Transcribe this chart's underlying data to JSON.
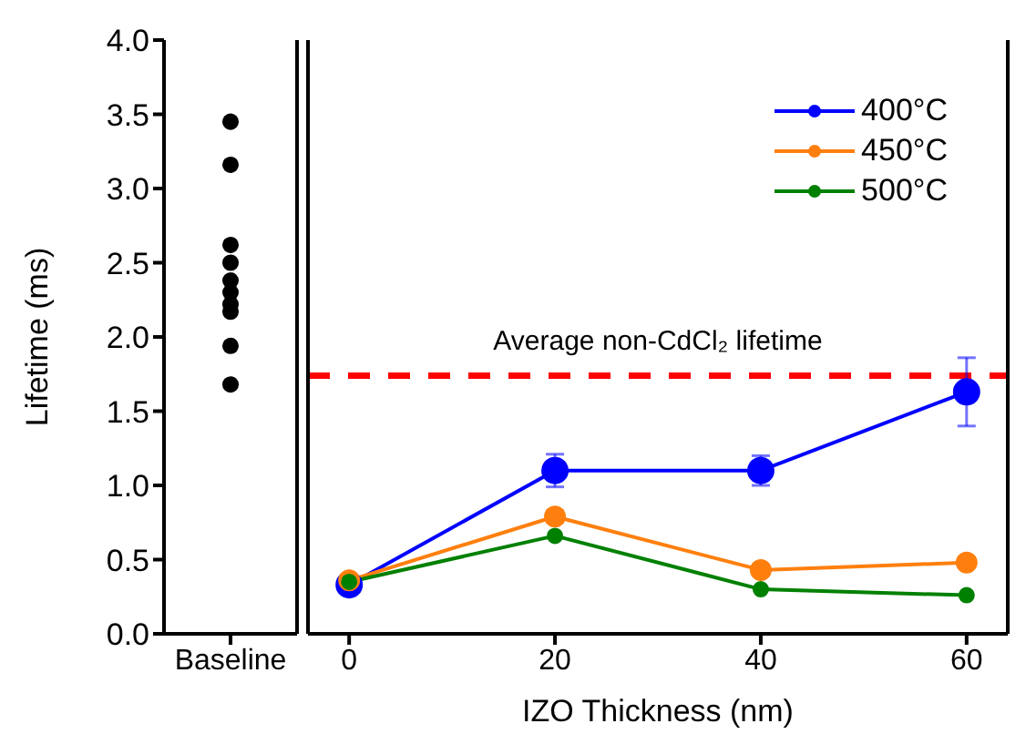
{
  "chart_data": [
    {
      "type": "scatter",
      "ylabel": "Lifetime (ms)",
      "categories": [
        "Baseline"
      ],
      "series": [
        {
          "color": "#000000",
          "x": [
            "Baseline",
            "Baseline",
            "Baseline",
            "Baseline",
            "Baseline",
            "Baseline",
            "Baseline",
            "Baseline",
            "Baseline",
            "Baseline"
          ],
          "values": [
            3.45,
            3.16,
            2.62,
            2.5,
            2.38,
            2.3,
            2.22,
            2.17,
            1.94,
            1.68
          ]
        }
      ],
      "ylim": [
        0,
        4
      ],
      "yticks": [
        {
          "value": 0,
          "label": "0.0"
        },
        0.5,
        {
          "value": 1,
          "label": "1.0"
        },
        1.5,
        {
          "value": 2,
          "label": "2.0"
        },
        2.5,
        {
          "value": 3,
          "label": "3.0"
        },
        3.5,
        {
          "value": 4,
          "label": "4.0"
        }
      ],
      "marker": "circle"
    },
    {
      "type": "line",
      "xlabel": "IZO Thickness (nm)",
      "x": [
        0,
        20,
        40,
        60
      ],
      "series": [
        {
          "name": "400°C",
          "color": "#0000ff",
          "values": [
            0.33,
            1.1,
            1.1,
            1.63
          ],
          "errors": [
            null,
            0.11,
            0.1,
            0.23
          ]
        },
        {
          "name": "450°C",
          "color": "#ff7f0e",
          "values": [
            0.36,
            0.79,
            0.43,
            0.48
          ],
          "errors": [
            null,
            0.04,
            null,
            null
          ]
        },
        {
          "name": "500°C",
          "color": "#008000",
          "values": [
            0.35,
            0.66,
            0.3,
            0.26
          ]
        }
      ],
      "xlim": [
        -4,
        64
      ],
      "xticks": [
        0,
        20,
        40,
        60
      ],
      "ylim": [
        0,
        4
      ],
      "yticks": [
        0,
        0.5,
        1,
        1.5,
        2,
        2.5,
        3,
        3.5,
        4
      ],
      "tick_labels": "x",
      "ref_lines": [
        {
          "axis": "y",
          "value": 1.74,
          "label": "Average non-CdCl₂ lifetime",
          "color": "#ff0000",
          "line_style": "dashed"
        }
      ],
      "legend": "top right",
      "marker": "circle",
      "line_style": "solid"
    }
  ]
}
